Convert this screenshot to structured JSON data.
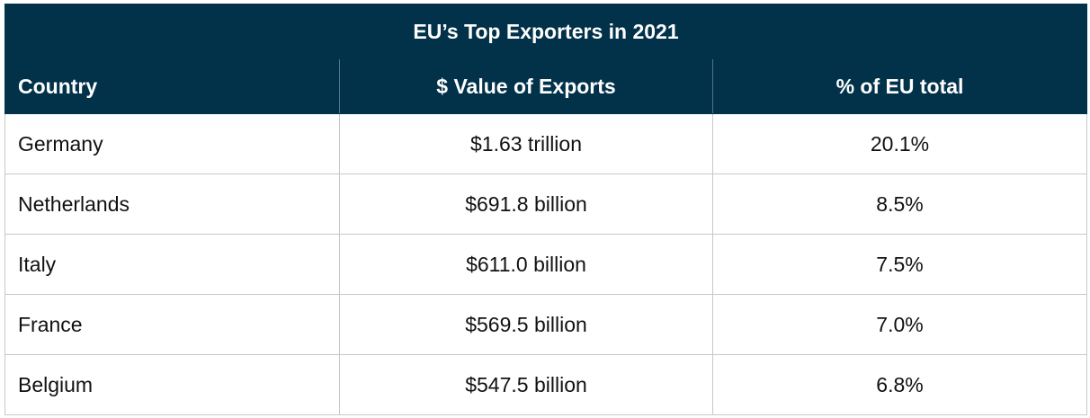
{
  "table": {
    "title": "EU’s Top Exporters in 2021",
    "columns": [
      "Country",
      "$ Value of Exports",
      "% of EU total"
    ],
    "rows": [
      {
        "country": "Germany",
        "value": "$1.63 trillion",
        "percent": "20.1%"
      },
      {
        "country": "Netherlands",
        "value": "$691.8 billion",
        "percent": "8.5%"
      },
      {
        "country": "Italy",
        "value": "$611.0 billion",
        "percent": "7.5%"
      },
      {
        "country": "France",
        "value": "$569.5 billion",
        "percent": "7.0%"
      },
      {
        "country": "Belgium",
        "value": "$547.5 billion",
        "percent": "6.8%"
      }
    ]
  },
  "colors": {
    "header_background": "#02324a",
    "header_text": "#ffffff",
    "grid_lines": "#c8c8c8"
  }
}
